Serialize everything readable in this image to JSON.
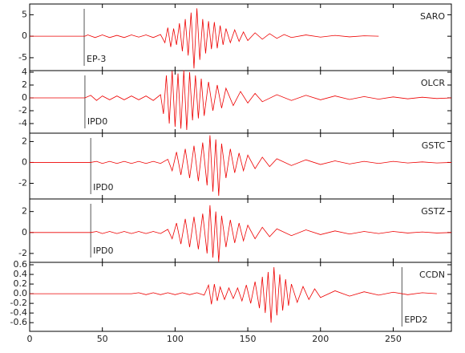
{
  "chart_data": [
    {
      "type": "line",
      "station": "SARO",
      "color": "#e00000",
      "xlim": [
        0,
        290
      ],
      "ylim": [
        -8,
        7.5
      ],
      "yticks": [
        -5,
        0,
        5
      ],
      "marker": {
        "x": 37.5,
        "label": "EP-3"
      },
      "x": [
        0,
        38,
        40,
        45,
        50,
        55,
        60,
        65,
        70,
        75,
        80,
        85,
        90,
        93,
        95,
        97,
        99,
        101,
        103,
        105,
        107,
        109,
        111,
        113,
        115,
        117,
        119,
        121,
        123,
        125,
        127,
        129,
        131,
        133,
        135,
        138,
        141,
        144,
        147,
        150,
        155,
        160,
        165,
        170,
        175,
        180,
        190,
        200,
        210,
        220,
        230,
        240
      ],
      "values": [
        0,
        0,
        0.3,
        -0.3,
        0.3,
        -0.3,
        0.2,
        -0.3,
        0.3,
        -0.2,
        0.3,
        -0.3,
        0.4,
        -1.5,
        2,
        -2.5,
        1.8,
        -2,
        3,
        -3.5,
        4,
        -4.5,
        5.5,
        -7.5,
        6.5,
        -5.5,
        4,
        -4,
        3.5,
        -3,
        3.3,
        -2.8,
        2.5,
        -2,
        1.8,
        -1.5,
        1.5,
        -1.2,
        1,
        -1,
        0.8,
        -0.7,
        0.6,
        -0.5,
        0.4,
        -0.3,
        0.3,
        -0.2,
        0.2,
        -0.15,
        0.1,
        0
      ]
    },
    {
      "type": "line",
      "station": "OLCR",
      "color": "#e00000",
      "xlim": [
        0,
        290
      ],
      "ylim": [
        -5.5,
        4.25
      ],
      "yticks": [
        -4,
        -2,
        0,
        2,
        4
      ],
      "marker": {
        "x": 38,
        "label": "IPD0"
      },
      "x": [
        0,
        38,
        42,
        46,
        50,
        55,
        60,
        65,
        70,
        75,
        80,
        85,
        90,
        92,
        94,
        96,
        98,
        100,
        102,
        104,
        106,
        108,
        110,
        112,
        114,
        116,
        118,
        120,
        123,
        126,
        129,
        132,
        135,
        140,
        145,
        150,
        155,
        160,
        170,
        180,
        190,
        200,
        210,
        220,
        230,
        240,
        250,
        260,
        270,
        280,
        290
      ],
      "values": [
        0,
        0,
        0.4,
        -0.4,
        0.3,
        -0.3,
        0.3,
        -0.3,
        0.3,
        -0.3,
        0.3,
        -0.4,
        0.5,
        -2.5,
        3.5,
        -4,
        4.2,
        -4.5,
        3.8,
        -4.8,
        4.3,
        -5,
        4,
        -3.5,
        3.5,
        -3.2,
        3,
        -2.8,
        2.5,
        -2,
        2,
        -1.6,
        1.5,
        -1.2,
        1,
        -0.8,
        0.7,
        -0.6,
        0.5,
        -0.4,
        0.4,
        -0.3,
        0.3,
        -0.25,
        0.2,
        -0.2,
        0.15,
        -0.15,
        0.1,
        -0.1,
        0
      ]
    },
    {
      "type": "line",
      "station": "GSTC",
      "color": "#e00000",
      "xlim": [
        0,
        290
      ],
      "ylim": [
        -3.5,
        2.8
      ],
      "yticks": [
        -2,
        0,
        2
      ],
      "marker": {
        "x": 42,
        "label": "IPD0"
      },
      "x": [
        0,
        42,
        46,
        50,
        55,
        60,
        65,
        70,
        75,
        80,
        85,
        90,
        95,
        98,
        101,
        104,
        107,
        110,
        113,
        116,
        119,
        122,
        124,
        126,
        128,
        130,
        132,
        135,
        138,
        141,
        144,
        147,
        150,
        155,
        160,
        165,
        170,
        180,
        190,
        200,
        210,
        220,
        230,
        240,
        250,
        260,
        270,
        280,
        290
      ],
      "values": [
        0,
        0,
        0.1,
        -0.1,
        0.1,
        -0.1,
        0.1,
        -0.1,
        0.1,
        -0.1,
        0.1,
        -0.1,
        0.3,
        -0.8,
        1,
        -1.2,
        1.3,
        -1.5,
        1.6,
        -1.8,
        1.9,
        -2.2,
        2.6,
        -2.8,
        2.2,
        -3.2,
        1.8,
        -1.5,
        1.3,
        -1,
        0.9,
        -0.8,
        0.7,
        -0.6,
        0.5,
        -0.4,
        0.35,
        -0.3,
        0.25,
        -0.2,
        0.15,
        -0.15,
        0.1,
        -0.1,
        0.1,
        -0.05,
        0.05,
        -0.05,
        0
      ]
    },
    {
      "type": "line",
      "station": "GSTZ",
      "color": "#e00000",
      "xlim": [
        0,
        290
      ],
      "ylim": [
        -2.85,
        3.2
      ],
      "yticks": [
        -2,
        0,
        2
      ],
      "marker": {
        "x": 42,
        "label": "IPD0"
      },
      "x": [
        0,
        42,
        46,
        50,
        55,
        60,
        65,
        70,
        75,
        80,
        85,
        90,
        95,
        98,
        101,
        104,
        107,
        110,
        113,
        116,
        119,
        122,
        124,
        126,
        128,
        130,
        132,
        135,
        138,
        141,
        144,
        147,
        150,
        155,
        160,
        165,
        170,
        180,
        190,
        200,
        210,
        220,
        230,
        240,
        250,
        260,
        270,
        280,
        290
      ],
      "values": [
        0,
        0,
        0.1,
        -0.1,
        0.1,
        -0.1,
        0.1,
        -0.1,
        0.1,
        -0.1,
        0.1,
        -0.1,
        0.3,
        -0.6,
        0.9,
        -1.1,
        1.3,
        -1.4,
        1.5,
        -1.6,
        1.8,
        -2,
        2.6,
        -2.4,
        2,
        -2.8,
        1.6,
        -1.4,
        1.2,
        -1,
        0.9,
        -0.8,
        0.7,
        -0.6,
        0.5,
        -0.4,
        0.35,
        -0.3,
        0.25,
        -0.2,
        0.15,
        -0.15,
        0.1,
        -0.1,
        0.1,
        -0.05,
        0.05,
        -0.05,
        0
      ]
    },
    {
      "type": "line",
      "station": "CCDN",
      "color": "#e00000",
      "xlim": [
        0,
        290
      ],
      "ylim": [
        -0.78,
        0.65
      ],
      "yticks": [
        -0.6,
        -0.4,
        -0.2,
        {
          "value": 0,
          "label": "0.0"
        },
        0.2,
        0.4,
        0.6
      ],
      "xticks": [
        0,
        50,
        100,
        150,
        200,
        250
      ],
      "marker": {
        "x": 256,
        "label": "EPD2"
      },
      "x": [
        0,
        70,
        75,
        80,
        85,
        90,
        95,
        100,
        105,
        110,
        115,
        120,
        123,
        125,
        127,
        129,
        131,
        134,
        137,
        140,
        143,
        146,
        149,
        152,
        155,
        158,
        160,
        162,
        164,
        166,
        168,
        170,
        172,
        174,
        176,
        178,
        180,
        184,
        188,
        192,
        196,
        200,
        210,
        220,
        230,
        240,
        250,
        260,
        270,
        280
      ],
      "values": [
        0,
        0,
        0.02,
        -0.02,
        0.02,
        -0.02,
        0.02,
        -0.02,
        0.02,
        -0.02,
        0.02,
        -0.03,
        0.18,
        -0.22,
        0.2,
        -0.15,
        0.14,
        -0.12,
        0.12,
        -0.1,
        0.12,
        -0.15,
        0.18,
        -0.2,
        0.25,
        -0.3,
        0.35,
        -0.4,
        0.45,
        -0.6,
        0.55,
        -0.45,
        0.4,
        -0.35,
        0.3,
        -0.25,
        0.2,
        -0.18,
        0.15,
        -0.12,
        0.1,
        -0.08,
        0.06,
        -0.05,
        0.04,
        -0.03,
        0.03,
        -0.02,
        0.02,
        0
      ]
    }
  ]
}
